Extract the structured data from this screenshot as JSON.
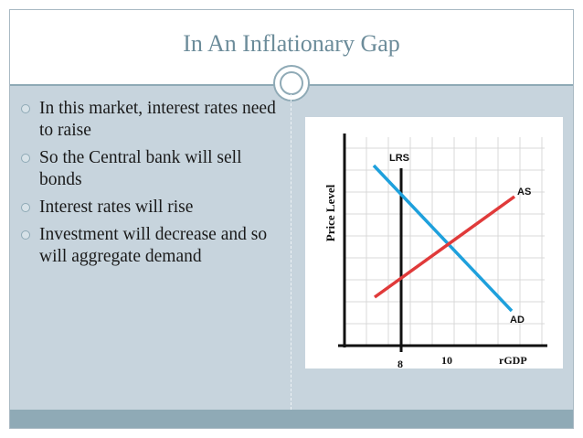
{
  "slide": {
    "title": "In An Inflationary Gap",
    "bullets": [
      "In this market, interest rates need to raise",
      "So the Central bank will sell bonds",
      "Interest rates will rise",
      "Investment will decrease and so will aggregate demand"
    ]
  },
  "colors": {
    "accent": "#8faab6",
    "title_text": "#6c8c9a",
    "slide_bg": "#c7d4dd",
    "as_line": "#e03a3a",
    "ad_line": "#1ea0dc",
    "lrs_line": "#111111",
    "grid": "#d9d9d9"
  },
  "chart_data": {
    "type": "line",
    "ylabel": "Price Level",
    "xlabel": "rGDP",
    "xticks": [
      "8",
      "10"
    ],
    "grid": true,
    "curves": [
      {
        "name": "LRS",
        "kind": "vertical",
        "x": 8
      },
      {
        "name": "AS",
        "kind": "upward-sloping"
      },
      {
        "name": "AD",
        "kind": "downward-sloping"
      }
    ]
  }
}
